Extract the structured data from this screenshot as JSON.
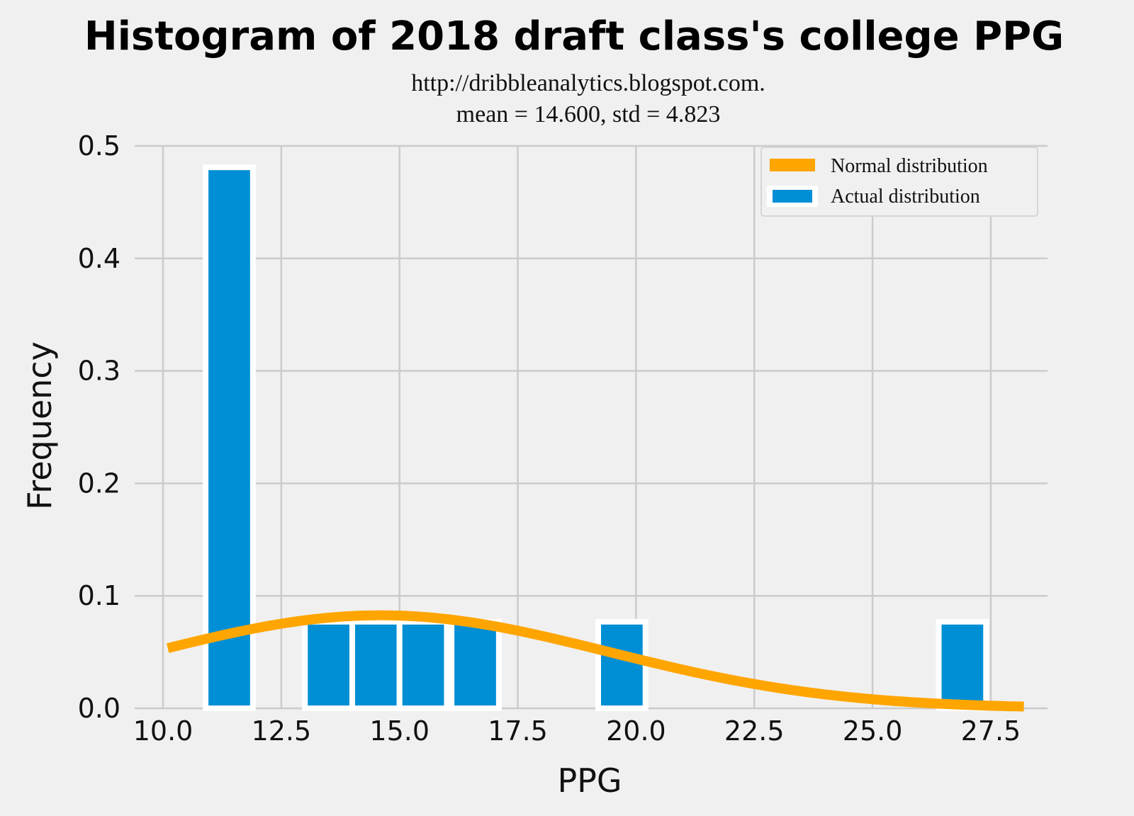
{
  "chart_data": {
    "type": "bar",
    "title": "Histogram of 2018 draft class's college PPG",
    "subtitle_lines": [
      "http://dribbleanalytics.blogspot.com.",
      "mean = 14.600, std = 4.823"
    ],
    "xlabel": "PPG",
    "ylabel": "Frequency",
    "xlim": [
      9.4,
      28.7
    ],
    "ylim": [
      0,
      0.5
    ],
    "xticks": [
      10.0,
      12.5,
      15.0,
      17.5,
      20.0,
      22.5,
      25.0,
      27.5
    ],
    "xtick_labels": [
      "10.0",
      "12.5",
      "15.0",
      "17.5",
      "20.0",
      "22.5",
      "25.0",
      "27.5"
    ],
    "yticks": [
      0.0,
      0.1,
      0.2,
      0.3,
      0.4,
      0.5
    ],
    "ytick_labels": [
      "0.0",
      "0.1",
      "0.2",
      "0.3",
      "0.4",
      "0.5"
    ],
    "grid": true,
    "legend_position": "top-right",
    "bars": [
      {
        "x_start": 10.9,
        "x_end": 11.9,
        "value": 0.481
      },
      {
        "x_start": 13.0,
        "x_end": 14.0,
        "value": 0.077
      },
      {
        "x_start": 14.0,
        "x_end": 15.0,
        "value": 0.077
      },
      {
        "x_start": 15.0,
        "x_end": 16.0,
        "value": 0.077
      },
      {
        "x_start": 16.1,
        "x_end": 17.1,
        "value": 0.077
      },
      {
        "x_start": 19.2,
        "x_end": 20.2,
        "value": 0.077
      },
      {
        "x_start": 26.4,
        "x_end": 27.4,
        "value": 0.077
      }
    ],
    "normal_curve": {
      "mean": 14.6,
      "std": 4.823,
      "x_range": [
        10.1,
        28.2
      ]
    },
    "series": [
      {
        "name": "Normal distribution",
        "color": "#ffa500",
        "kind": "line"
      },
      {
        "name": "Actual distribution",
        "color": "#008fd5",
        "kind": "bar"
      }
    ]
  }
}
